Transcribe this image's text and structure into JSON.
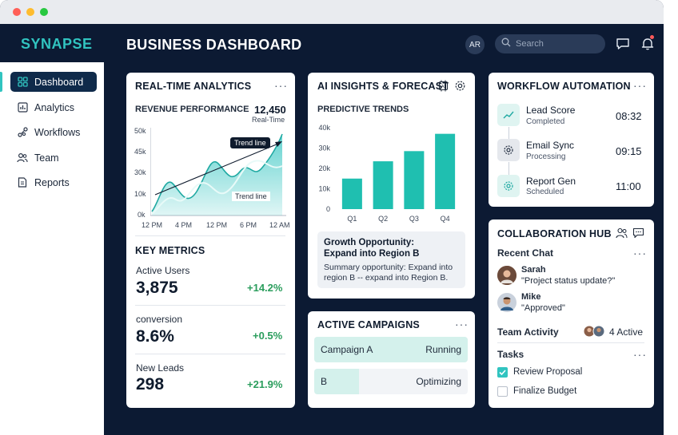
{
  "app": {
    "brand": "SYNAPSE",
    "page_title": "BUSINESS DASHBOARD"
  },
  "header": {
    "avatar_initials": "AR",
    "search_placeholder": "Search"
  },
  "sidebar": {
    "items": [
      {
        "label": "Dashboard",
        "icon": "dashboard-icon",
        "active": true
      },
      {
        "label": "Analytics",
        "icon": "analytics-icon"
      },
      {
        "label": "Workflows",
        "icon": "workflows-icon"
      },
      {
        "label": "Team",
        "icon": "team-icon"
      },
      {
        "label": "Reports",
        "icon": "reports-icon"
      }
    ]
  },
  "analytics": {
    "title": "REAL-TIME ANALYTICS",
    "revenue_label": "REVENUE PERFORMANCE",
    "revenue_value": "12,450",
    "revenue_sub": "Real-Time",
    "trend_label": "Trend line",
    "chart": {
      "y_ticks": [
        "50k",
        "45k",
        "30k",
        "10k",
        "0k"
      ],
      "x_ticks": [
        "12 PM",
        "4 PM",
        "12 PM",
        "6 PM",
        "12 AM"
      ]
    },
    "key_metrics_title": "KEY METRICS",
    "metrics": [
      {
        "label": "Active Users",
        "value": "3,875",
        "delta": "+14.2%"
      },
      {
        "label": "conversion",
        "value": "8.6%",
        "delta": "+0.5%"
      },
      {
        "label": "New Leads",
        "value": "298",
        "delta": "+21.9%"
      }
    ]
  },
  "insights": {
    "title": "AI INSIGHTS & FORECAST",
    "chart_title": "PREDICTIVE TRENDS",
    "callout_title": "Growth Opportunity:\nExpand into Region B",
    "callout_body": "Summary opportunity: Expand into region B -- expand into Region B."
  },
  "chart_data": {
    "type": "bar",
    "categories": [
      "Q1",
      "Q2",
      "Q3",
      "Q4"
    ],
    "values": [
      15000,
      23500,
      28500,
      37000
    ],
    "y_ticks": [
      "40k",
      "30k",
      "20k",
      "10k",
      "0"
    ],
    "ylim": [
      0,
      40000
    ],
    "grid": false,
    "color": "#1fbfb0"
  },
  "campaigns": {
    "title": "ACTIVE CAMPAIGNS",
    "items": [
      {
        "name": "Campaign A",
        "status": "Running",
        "progress": 1.0
      },
      {
        "name": "B",
        "status": "Optimizing",
        "progress": 0.29
      }
    ]
  },
  "workflow": {
    "title": "WORKFLOW AUTOMATION",
    "items": [
      {
        "name": "Lead Score",
        "status": "Completed",
        "time": "08:32",
        "icon": "chart-line-icon"
      },
      {
        "name": "Email Sync",
        "status": "Processing",
        "time": "09:15",
        "icon": "gear-icon"
      },
      {
        "name": "Report Gen",
        "status": "Scheduled",
        "time": "11:00",
        "icon": "gear-icon"
      }
    ]
  },
  "collab": {
    "title": "COLLABORATION HUB",
    "recent_chat": "Recent Chat",
    "chats": [
      {
        "name": "Sarah",
        "message": "\"Project status update?\""
      },
      {
        "name": "Mike",
        "message": "\"Approved\""
      }
    ],
    "team_activity": "Team Activity",
    "active_count": "4 Active",
    "tasks_title": "Tasks",
    "tasks": [
      {
        "label": "Review Proposal",
        "done": true
      },
      {
        "label": "Finalize Budget",
        "done": false
      }
    ]
  },
  "colors": {
    "accent": "#31c4c0",
    "navy": "#0c1a33",
    "positive": "#2a9d5c"
  }
}
